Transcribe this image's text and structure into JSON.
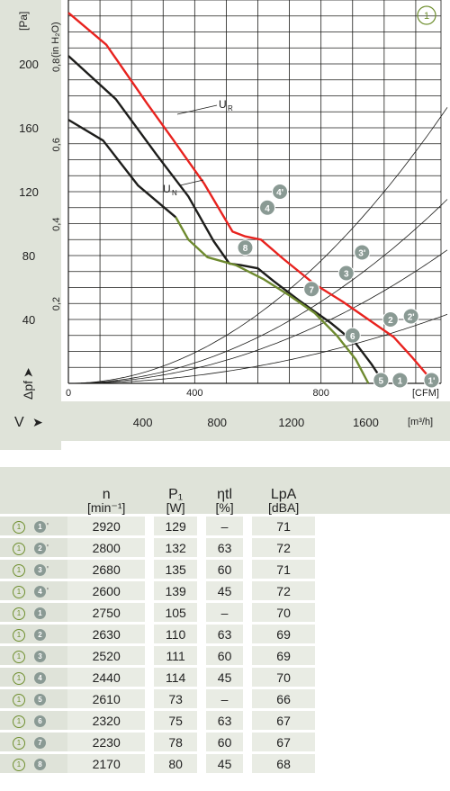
{
  "chart_data": {
    "type": "line",
    "badge": "1",
    "y_unit_pa": "[Pa]",
    "y_unit_inh2o": "(in H₂O)",
    "y_ticks_pa": [
      "200",
      "160",
      "120",
      "80",
      "40"
    ],
    "y_ticks_inh2o": [
      "0,8",
      "0,6",
      "0,4",
      "0,2"
    ],
    "y_axis_label": "Δpf",
    "x_ticks_cfm": [
      "0",
      "400",
      "800"
    ],
    "x_unit_cfm": "[CFM]",
    "x_ticks_m3h": [
      "400",
      "800",
      "1200",
      "1600"
    ],
    "x_unit_m3h": "[m³/h]",
    "x_axis_label": "V",
    "x_range_cfm": [
      0,
      1180
    ],
    "y_range_pa": [
      0,
      240
    ],
    "series": [
      {
        "name": "UR",
        "label": "U",
        "sub": "R",
        "color": "#e8231f",
        "points_cfm_pa": [
          [
            0,
            232
          ],
          [
            120,
            212
          ],
          [
            250,
            175
          ],
          [
            330,
            153
          ],
          [
            430,
            125
          ],
          [
            520,
            95
          ],
          [
            560,
            92
          ],
          [
            610,
            90
          ],
          [
            680,
            78
          ],
          [
            780,
            62
          ],
          [
            870,
            51
          ],
          [
            950,
            40
          ],
          [
            1030,
            29
          ],
          [
            1090,
            16
          ],
          [
            1150,
            2
          ]
        ]
      },
      {
        "name": "UN",
        "label": "U",
        "sub": "N",
        "color": "#1d1d1b",
        "points_cfm_pa": [
          [
            0,
            205
          ],
          [
            150,
            178
          ],
          [
            280,
            143
          ],
          [
            380,
            117
          ],
          [
            460,
            89
          ],
          [
            510,
            75
          ],
          [
            545,
            74
          ],
          [
            600,
            72
          ],
          [
            650,
            64
          ],
          [
            730,
            52
          ],
          [
            830,
            38
          ],
          [
            910,
            25
          ],
          [
            960,
            12
          ],
          [
            1000,
            0
          ]
        ]
      },
      {
        "name": "low",
        "color": "#1d1d1b",
        "points_cfm_pa": [
          [
            0,
            165
          ],
          [
            110,
            152
          ],
          [
            220,
            124
          ],
          [
            340,
            104
          ]
        ]
      },
      {
        "name": "low-green",
        "color": "#6e8a2f",
        "points_cfm_pa": [
          [
            340,
            104
          ],
          [
            380,
            90
          ],
          [
            440,
            79
          ],
          [
            530,
            74
          ],
          [
            620,
            65
          ],
          [
            700,
            55
          ],
          [
            780,
            44
          ],
          [
            850,
            30
          ],
          [
            910,
            15
          ],
          [
            950,
            0
          ]
        ]
      }
    ],
    "system_curves": [
      {
        "k_pa": 0.00012
      },
      {
        "k_pa": 8e-05
      },
      {
        "k_pa": 5.8e-05
      },
      {
        "k_pa": 3e-05
      }
    ],
    "markers": [
      {
        "label": "1'",
        "x": 1150,
        "y": 2
      },
      {
        "label": "2'",
        "x": 1085,
        "y": 42
      },
      {
        "label": "3'",
        "x": 930,
        "y": 82
      },
      {
        "label": "4'",
        "x": 670,
        "y": 120
      },
      {
        "label": "1",
        "x": 1050,
        "y": 2
      },
      {
        "label": "2",
        "x": 1020,
        "y": 40
      },
      {
        "label": "3",
        "x": 880,
        "y": 69
      },
      {
        "label": "4",
        "x": 630,
        "y": 110
      },
      {
        "label": "5",
        "x": 990,
        "y": 2
      },
      {
        "label": "6",
        "x": 900,
        "y": 30
      },
      {
        "label": "7",
        "x": 770,
        "y": 59
      },
      {
        "label": "8",
        "x": 560,
        "y": 85
      }
    ]
  },
  "table": {
    "headers": [
      {
        "main": "n",
        "sub": "[min⁻¹]"
      },
      {
        "main": "P₁",
        "sub": "[W]"
      },
      {
        "main": "ηtl",
        "sub": "[%]"
      },
      {
        "main": "LpA",
        "sub": "[dBA]"
      }
    ],
    "rows": [
      {
        "circle": "1",
        "dot": "1",
        "prime": "'",
        "n": "2920",
        "p": "129",
        "eta": "–",
        "lpa": "71"
      },
      {
        "circle": "1",
        "dot": "2",
        "prime": "'",
        "n": "2800",
        "p": "132",
        "eta": "63",
        "lpa": "72"
      },
      {
        "circle": "1",
        "dot": "3",
        "prime": "'",
        "n": "2680",
        "p": "135",
        "eta": "60",
        "lpa": "71"
      },
      {
        "circle": "1",
        "dot": "4",
        "prime": "'",
        "n": "2600",
        "p": "139",
        "eta": "45",
        "lpa": "72"
      },
      {
        "circle": "1",
        "dot": "1",
        "prime": "",
        "n": "2750",
        "p": "105",
        "eta": "–",
        "lpa": "70"
      },
      {
        "circle": "1",
        "dot": "2",
        "prime": "",
        "n": "2630",
        "p": "110",
        "eta": "63",
        "lpa": "69"
      },
      {
        "circle": "1",
        "dot": "3",
        "prime": "",
        "n": "2520",
        "p": "111",
        "eta": "60",
        "lpa": "69"
      },
      {
        "circle": "1",
        "dot": "4",
        "prime": "",
        "n": "2440",
        "p": "114",
        "eta": "45",
        "lpa": "70"
      },
      {
        "circle": "1",
        "dot": "5",
        "prime": "",
        "n": "2610",
        "p": "73",
        "eta": "–",
        "lpa": "66"
      },
      {
        "circle": "1",
        "dot": "6",
        "prime": "",
        "n": "2320",
        "p": "75",
        "eta": "63",
        "lpa": "67"
      },
      {
        "circle": "1",
        "dot": "7",
        "prime": "",
        "n": "2230",
        "p": "78",
        "eta": "60",
        "lpa": "67"
      },
      {
        "circle": "1",
        "dot": "8",
        "prime": "",
        "n": "2170",
        "p": "80",
        "eta": "45",
        "lpa": "68"
      }
    ]
  }
}
